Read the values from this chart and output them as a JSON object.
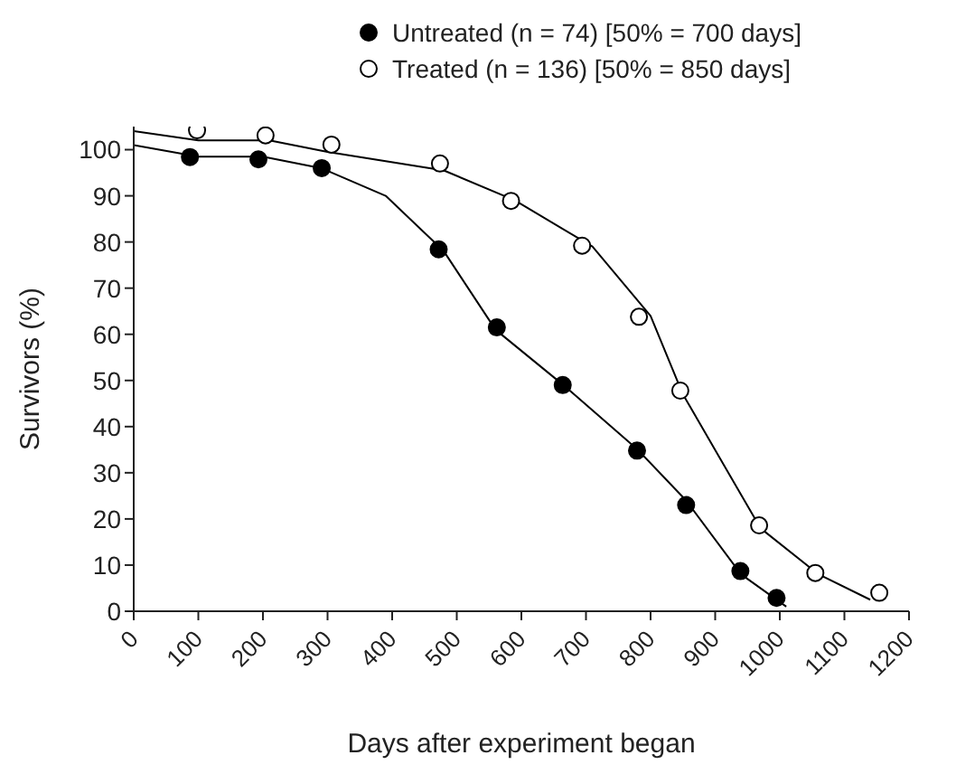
{
  "chart_data": {
    "type": "scatter",
    "xlabel": "Days after experiment began",
    "ylabel": "Survivors (%)",
    "xlim": [
      0,
      1200
    ],
    "xticks": [
      0,
      100,
      200,
      300,
      400,
      500,
      600,
      700,
      800,
      900,
      1000,
      1100,
      1200
    ],
    "ylim": [
      0,
      105
    ],
    "yticks": [
      0,
      10,
      20,
      30,
      40,
      50,
      60,
      70,
      80,
      90,
      100
    ],
    "grid": false,
    "legend": "top right",
    "marker": "circle",
    "series": [
      {
        "name": "Untreated (n = 74) [50% = 700 days]",
        "color": "#000000",
        "x": [
          87,
          193,
          291,
          472,
          562,
          664,
          779,
          855,
          939,
          995
        ],
        "values": [
          98.4,
          97.9,
          96,
          78.4,
          61.5,
          49,
          34.8,
          23,
          8.7,
          2.9
        ]
      },
      {
        "name": "Treated (n = 136) [50% = 850 days]",
        "color": "#ffffff",
        "x": [
          98,
          204,
          306,
          474,
          584,
          694,
          782,
          846,
          968,
          1055,
          1154
        ],
        "values": [
          104.2,
          103.1,
          101.1,
          97,
          88.9,
          79.2,
          63.8,
          47.8,
          18.6,
          8.3,
          4
        ]
      },
      {
        "type": "line",
        "color": "#000000",
        "marker": "none",
        "x": [
          0,
          100,
          200,
          290,
          390,
          480,
          560,
          665,
          780,
          855,
          940,
          1010
        ],
        "values": [
          101,
          98.5,
          98.5,
          96,
          90,
          78,
          61,
          49,
          35,
          24,
          8,
          1
        ]
      },
      {
        "type": "line",
        "color": "#000000",
        "marker": "none",
        "x": [
          0,
          100,
          210,
          300,
          480,
          590,
          710,
          800,
          850,
          970,
          1060,
          1140
        ],
        "values": [
          104,
          102,
          102,
          99.5,
          95.5,
          89,
          79,
          64,
          47,
          18,
          8,
          2.5
        ]
      }
    ]
  }
}
